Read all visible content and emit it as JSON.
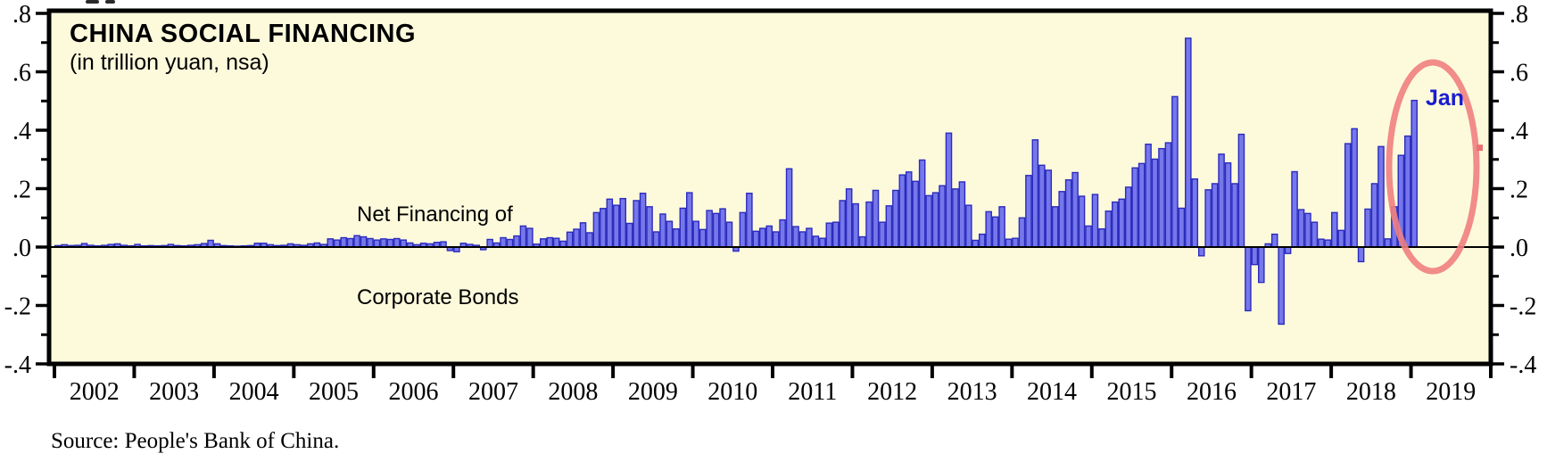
{
  "header": {
    "title": "CHINA SOCIAL FINANCING",
    "subtitle": "(in trillion yuan, nsa)"
  },
  "labels": {
    "series_line1": "Net Financing of",
    "series_line2": "Corporate Bonds",
    "highlight": "Jan",
    "source": "Source: People's Bank of China."
  },
  "colors": {
    "plot_background": "#FDFADC",
    "bar_fill": "#7577EB",
    "bar_border": "#2B2BBD",
    "axis": "#000000",
    "highlight_ellipse": "#F08080",
    "highlight_label": "#1B1BD0",
    "red_marker": "#E87272"
  },
  "chart_data": {
    "type": "bar",
    "title": "CHINA SOCIAL FINANCING",
    "subtitle": "(in trillion yuan, nsa)",
    "series_name": "Net Financing of Corporate Bonds",
    "unit": "trillion yuan",
    "frequency": "monthly",
    "seasonal_adjustment": "nsa",
    "x_range": [
      "2002-01",
      "2019-01"
    ],
    "ylim": [
      -0.4,
      0.8
    ],
    "y_ticks_labels": [
      ".8",
      ".6",
      ".4",
      ".2",
      ".0",
      "-.2",
      "-.4"
    ],
    "y_ticks_values": [
      0.8,
      0.6,
      0.4,
      0.2,
      0,
      -0.2,
      -0.4
    ],
    "y_minor_tick_step": 0.1,
    "x_tick_years": [
      "2002",
      "2003",
      "2004",
      "2005",
      "2006",
      "2007",
      "2008",
      "2009",
      "2010",
      "2011",
      "2012",
      "2013",
      "2014",
      "2015",
      "2016",
      "2017",
      "2018",
      "2019"
    ],
    "grid": false,
    "legend_position": "none",
    "monthly_series": [
      {
        "year": 2002,
        "values": [
          0.005,
          0.008,
          0.005,
          0.006,
          0.012,
          0.006,
          0.004,
          0.006,
          0.009,
          0.011,
          0.006,
          0.004
        ]
      },
      {
        "year": 2003,
        "values": [
          0.009,
          0.004,
          0.005,
          0.004,
          0.005,
          0.009,
          0.005,
          0.004,
          0.006,
          0.008,
          0.012,
          0.023
        ]
      },
      {
        "year": 2004,
        "values": [
          0.011,
          0.005,
          0.004,
          0.003,
          0.004,
          0.005,
          0.013,
          0.013,
          0.008,
          0.005,
          0.006,
          0.011
        ]
      },
      {
        "year": 2005,
        "values": [
          0.008,
          0.006,
          0.011,
          0.014,
          0.009,
          0.028,
          0.024,
          0.032,
          0.029,
          0.039,
          0.035,
          0.029
        ]
      },
      {
        "year": 2006,
        "values": [
          0.024,
          0.028,
          0.026,
          0.029,
          0.024,
          0.014,
          0.008,
          0.013,
          0.011,
          0.016,
          0.018,
          -0.012
        ]
      },
      {
        "year": 2007,
        "values": [
          -0.016,
          0.013,
          0.009,
          0.006,
          -0.009,
          0.026,
          0.014,
          0.032,
          0.026,
          0.038,
          0.072,
          0.064
        ]
      },
      {
        "year": 2008,
        "values": [
          0.01,
          0.028,
          0.032,
          0.03,
          0.02,
          0.051,
          0.061,
          0.083,
          0.049,
          0.118,
          0.132,
          0.164
        ]
      },
      {
        "year": 2009,
        "values": [
          0.143,
          0.166,
          0.081,
          0.159,
          0.184,
          0.138,
          0.052,
          0.113,
          0.088,
          0.062,
          0.133,
          0.186
        ]
      },
      {
        "year": 2010,
        "values": [
          0.088,
          0.06,
          0.125,
          0.115,
          0.131,
          0.085,
          -0.014,
          0.118,
          0.184,
          0.054,
          0.064,
          0.072
        ]
      },
      {
        "year": 2011,
        "values": [
          0.052,
          0.093,
          0.268,
          0.07,
          0.052,
          0.064,
          0.037,
          0.03,
          0.082,
          0.085,
          0.159,
          0.199
        ]
      },
      {
        "year": 2012,
        "values": [
          0.148,
          0.035,
          0.154,
          0.194,
          0.085,
          0.141,
          0.194,
          0.247,
          0.257,
          0.225,
          0.298,
          0.176
        ]
      },
      {
        "year": 2013,
        "values": [
          0.186,
          0.21,
          0.39,
          0.199,
          0.223,
          0.143,
          0.023,
          0.044,
          0.121,
          0.103,
          0.138,
          0.027
        ]
      },
      {
        "year": 2014,
        "values": [
          0.03,
          0.1,
          0.245,
          0.367,
          0.28,
          0.263,
          0.138,
          0.19,
          0.23,
          0.255,
          0.174,
          0.072
        ]
      },
      {
        "year": 2015,
        "values": [
          0.18,
          0.062,
          0.123,
          0.154,
          0.164,
          0.205,
          0.271,
          0.286,
          0.352,
          0.301,
          0.337,
          0.357
        ]
      },
      {
        "year": 2016,
        "values": [
          0.515,
          0.133,
          0.715,
          0.233,
          -0.03,
          0.196,
          0.217,
          0.318,
          0.288,
          0.217,
          0.386,
          -0.218
        ]
      },
      {
        "year": 2017,
        "values": [
          -0.06,
          -0.121,
          0.011,
          0.044,
          -0.264,
          -0.022,
          0.258,
          0.128,
          0.115,
          0.085,
          0.027,
          0.024
        ]
      },
      {
        "year": 2018,
        "values": [
          0.118,
          0.057,
          0.354,
          0.405,
          -0.05,
          0.13,
          0.217,
          0.344,
          0.028,
          0.138,
          0.314,
          0.38
        ]
      },
      {
        "year": 2019,
        "values": [
          0.502
        ]
      }
    ],
    "annotations": {
      "highlight_label": {
        "text": "Jan",
        "points_to": "2019-01",
        "value": 0.5
      },
      "highlight_ellipse": {
        "shape": "ellipse",
        "around": "late-2018 / Jan-2019 bars"
      },
      "red_square_marker": {
        "value": 0.34,
        "position": "just left of right axis"
      }
    }
  }
}
